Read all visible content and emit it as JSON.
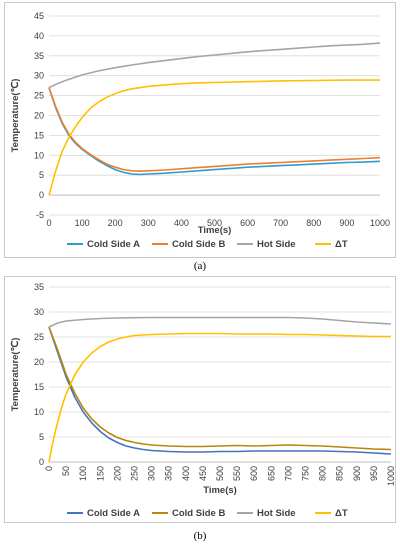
{
  "chart_data": [
    {
      "id": "a",
      "type": "line",
      "caption": "(a)",
      "xlabel": "Time(s)",
      "ylabel": "Temperature(℃)",
      "xlim": [
        0,
        1000
      ],
      "ylim": [
        -5,
        45
      ],
      "xticks": [
        0,
        100,
        200,
        300,
        400,
        500,
        600,
        700,
        800,
        900,
        1000
      ],
      "yticks": [
        -5,
        0,
        5,
        10,
        15,
        20,
        25,
        30,
        35,
        40,
        45
      ],
      "grid": true,
      "legend": "bottom",
      "series": [
        {
          "name": "Cold Side A",
          "color": "#2e9cd0",
          "points": [
            [
              0,
              27
            ],
            [
              20,
              22
            ],
            [
              40,
              18
            ],
            [
              60,
              15
            ],
            [
              80,
              13
            ],
            [
              100,
              11.5
            ],
            [
              125,
              10
            ],
            [
              150,
              8.6
            ],
            [
              175,
              7.4
            ],
            [
              200,
              6.4
            ],
            [
              225,
              5.7
            ],
            [
              250,
              5.3
            ],
            [
              275,
              5.2
            ],
            [
              300,
              5.3
            ],
            [
              350,
              5.5
            ],
            [
              400,
              5.8
            ],
            [
              450,
              6.1
            ],
            [
              500,
              6.4
            ],
            [
              550,
              6.7
            ],
            [
              600,
              7
            ],
            [
              650,
              7.2
            ],
            [
              700,
              7.4
            ],
            [
              750,
              7.6
            ],
            [
              800,
              7.8
            ],
            [
              850,
              8
            ],
            [
              900,
              8.2
            ],
            [
              950,
              8.3
            ],
            [
              1000,
              8.5
            ]
          ]
        },
        {
          "name": "Cold Side B",
          "color": "#ed7d31",
          "points": [
            [
              0,
              27
            ],
            [
              20,
              22.3
            ],
            [
              40,
              18.3
            ],
            [
              60,
              15.3
            ],
            [
              80,
              13.3
            ],
            [
              100,
              11.7
            ],
            [
              125,
              10.2
            ],
            [
              150,
              8.9
            ],
            [
              175,
              7.8
            ],
            [
              200,
              7
            ],
            [
              225,
              6.4
            ],
            [
              250,
              6.1
            ],
            [
              275,
              6
            ],
            [
              300,
              6.1
            ],
            [
              350,
              6.3
            ],
            [
              400,
              6.6
            ],
            [
              450,
              6.9
            ],
            [
              500,
              7.2
            ],
            [
              550,
              7.5
            ],
            [
              600,
              7.8
            ],
            [
              650,
              8
            ],
            [
              700,
              8.2
            ],
            [
              750,
              8.4
            ],
            [
              800,
              8.6
            ],
            [
              850,
              8.8
            ],
            [
              900,
              9
            ],
            [
              950,
              9.2
            ],
            [
              1000,
              9.4
            ]
          ]
        },
        {
          "name": "Hot Side",
          "color": "#a5a5a5",
          "points": [
            [
              0,
              27
            ],
            [
              25,
              28
            ],
            [
              50,
              28.8
            ],
            [
              100,
              30.2
            ],
            [
              150,
              31.2
            ],
            [
              200,
              32
            ],
            [
              250,
              32.7
            ],
            [
              300,
              33.3
            ],
            [
              350,
              33.8
            ],
            [
              400,
              34.3
            ],
            [
              450,
              34.8
            ],
            [
              500,
              35.2
            ],
            [
              550,
              35.6
            ],
            [
              600,
              36
            ],
            [
              650,
              36.3
            ],
            [
              700,
              36.6
            ],
            [
              750,
              36.9
            ],
            [
              800,
              37.2
            ],
            [
              850,
              37.5
            ],
            [
              900,
              37.7
            ],
            [
              950,
              37.9
            ],
            [
              1000,
              38.2
            ]
          ]
        },
        {
          "name": "ΔT",
          "color": "#ffc000",
          "points": [
            [
              0,
              0
            ],
            [
              10,
              3
            ],
            [
              20,
              6
            ],
            [
              30,
              8.6
            ],
            [
              40,
              11
            ],
            [
              60,
              14.5
            ],
            [
              80,
              17.2
            ],
            [
              100,
              19.5
            ],
            [
              125,
              21.8
            ],
            [
              150,
              23.4
            ],
            [
              175,
              24.6
            ],
            [
              200,
              25.5
            ],
            [
              225,
              26.2
            ],
            [
              250,
              26.7
            ],
            [
              300,
              27.3
            ],
            [
              350,
              27.7
            ],
            [
              400,
              28
            ],
            [
              450,
              28.2
            ],
            [
              500,
              28.3
            ],
            [
              600,
              28.5
            ],
            [
              700,
              28.7
            ],
            [
              800,
              28.8
            ],
            [
              900,
              28.9
            ],
            [
              1000,
              28.9
            ]
          ]
        }
      ]
    },
    {
      "id": "b",
      "type": "line",
      "caption": "(b)",
      "xlabel": "Time(s)",
      "ylabel": "Temperature(℃)",
      "xlim": [
        0,
        1000
      ],
      "ylim": [
        0,
        35
      ],
      "xticks": [
        0,
        50,
        100,
        150,
        200,
        250,
        300,
        350,
        400,
        450,
        500,
        550,
        600,
        650,
        700,
        750,
        800,
        850,
        900,
        950,
        1000
      ],
      "yticks": [
        0,
        5,
        10,
        15,
        20,
        25,
        30,
        35
      ],
      "grid": true,
      "legend": "bottom",
      "series": [
        {
          "name": "Cold Side A",
          "color": "#4472c4",
          "points": [
            [
              0,
              27
            ],
            [
              25,
              22
            ],
            [
              50,
              17
            ],
            [
              75,
              13
            ],
            [
              100,
              10
            ],
            [
              125,
              7.8
            ],
            [
              150,
              6.1
            ],
            [
              175,
              4.8
            ],
            [
              200,
              3.9
            ],
            [
              225,
              3.2
            ],
            [
              250,
              2.8
            ],
            [
              275,
              2.5
            ],
            [
              300,
              2.3
            ],
            [
              350,
              2.1
            ],
            [
              400,
              2
            ],
            [
              450,
              2
            ],
            [
              500,
              2.1
            ],
            [
              550,
              2.1
            ],
            [
              600,
              2.2
            ],
            [
              650,
              2.2
            ],
            [
              700,
              2.2
            ],
            [
              750,
              2.2
            ],
            [
              800,
              2.2
            ],
            [
              850,
              2.1
            ],
            [
              900,
              2
            ],
            [
              950,
              1.8
            ],
            [
              1000,
              1.6
            ]
          ]
        },
        {
          "name": "Cold Side B",
          "color": "#b8860b",
          "points": [
            [
              0,
              27
            ],
            [
              25,
              22.5
            ],
            [
              50,
              17.5
            ],
            [
              75,
              13.8
            ],
            [
              100,
              10.8
            ],
            [
              125,
              8.6
            ],
            [
              150,
              7
            ],
            [
              175,
              5.8
            ],
            [
              200,
              4.9
            ],
            [
              225,
              4.3
            ],
            [
              250,
              3.9
            ],
            [
              275,
              3.6
            ],
            [
              300,
              3.4
            ],
            [
              350,
              3.2
            ],
            [
              400,
              3.1
            ],
            [
              450,
              3.1
            ],
            [
              500,
              3.2
            ],
            [
              550,
              3.3
            ],
            [
              600,
              3.2
            ],
            [
              650,
              3.3
            ],
            [
              700,
              3.4
            ],
            [
              750,
              3.3
            ],
            [
              800,
              3.2
            ],
            [
              850,
              3
            ],
            [
              900,
              2.8
            ],
            [
              950,
              2.6
            ],
            [
              1000,
              2.5
            ]
          ]
        },
        {
          "name": "Hot Side",
          "color": "#a5a5a5",
          "points": [
            [
              0,
              27
            ],
            [
              25,
              27.8
            ],
            [
              50,
              28.2
            ],
            [
              100,
              28.5
            ],
            [
              150,
              28.7
            ],
            [
              200,
              28.8
            ],
            [
              300,
              28.9
            ],
            [
              400,
              28.9
            ],
            [
              500,
              28.9
            ],
            [
              600,
              28.9
            ],
            [
              700,
              28.9
            ],
            [
              750,
              28.8
            ],
            [
              800,
              28.6
            ],
            [
              850,
              28.3
            ],
            [
              900,
              28
            ],
            [
              950,
              27.8
            ],
            [
              1000,
              27.6
            ]
          ]
        },
        {
          "name": "ΔT",
          "color": "#ffc000",
          "points": [
            [
              0,
              0
            ],
            [
              10,
              3.5
            ],
            [
              20,
              6.5
            ],
            [
              30,
              9.2
            ],
            [
              40,
              11.6
            ],
            [
              50,
              13.6
            ],
            [
              75,
              17.4
            ],
            [
              100,
              20
            ],
            [
              125,
              21.8
            ],
            [
              150,
              23.1
            ],
            [
              175,
              24
            ],
            [
              200,
              24.6
            ],
            [
              225,
              25
            ],
            [
              250,
              25.3
            ],
            [
              300,
              25.5
            ],
            [
              350,
              25.6
            ],
            [
              400,
              25.7
            ],
            [
              450,
              25.7
            ],
            [
              500,
              25.7
            ],
            [
              550,
              25.6
            ],
            [
              600,
              25.6
            ],
            [
              650,
              25.6
            ],
            [
              700,
              25.5
            ],
            [
              750,
              25.5
            ],
            [
              800,
              25.4
            ],
            [
              850,
              25.3
            ],
            [
              900,
              25.2
            ],
            [
              950,
              25.1
            ],
            [
              1000,
              25.1
            ]
          ]
        }
      ]
    }
  ]
}
